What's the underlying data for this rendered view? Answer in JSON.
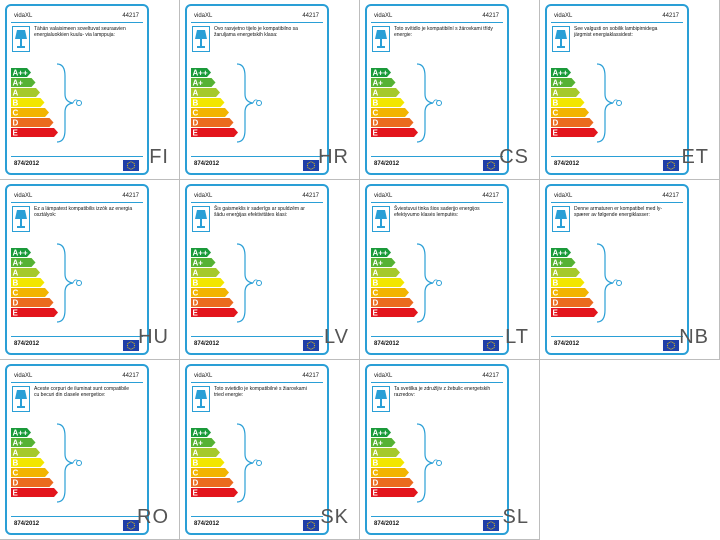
{
  "brand": "vidaXL",
  "model": "44217",
  "regulation": "874/2012",
  "energy_classes": [
    "A++",
    "A+",
    "A",
    "B",
    "C",
    "D",
    "E"
  ],
  "class_colors": [
    "#1a9a3a",
    "#56b234",
    "#a6c92b",
    "#f2e600",
    "#f2b400",
    "#ea6b1e",
    "#e3151d"
  ],
  "accent_color": "#2a9fd6",
  "labels": [
    {
      "code": "FI",
      "text": "Tähän valaisimeen soveltuvat seuraavien energialuokkien kuulu- via lamppuja:"
    },
    {
      "code": "HR",
      "text": "Ovo rasvjetno tijelo je kompatibilno sa žaruljama energetskih klasa:"
    },
    {
      "code": "CS",
      "text": "Toto svítidlo je kompatibilní s žárovkami třídy energie:"
    },
    {
      "code": "ET",
      "text": "See valgusti on sobilik lambipirnidega järgmist energiaklassidest:"
    },
    {
      "code": "HU",
      "text": "Ez a lámpatest kompatibilis izzók az energia osztályok:"
    },
    {
      "code": "LV",
      "text": "Šis gaismeklis ir saderīgs ar spuldzēm ar šādu enerģijas efektivitātes klasi:"
    },
    {
      "code": "LT",
      "text": "Šviestuvui tinka šios saderįjo energijos efektyvumo klasės lemputės:"
    },
    {
      "code": "NB",
      "text": "Denne armaturen er kompatibel med ly- spærer av følgende energiklasser:"
    },
    {
      "code": "RO",
      "text": "Aceste corpuri de iluminat sunt compatibile cu becuri din clasele energetice:"
    },
    {
      "code": "SK",
      "text": "Toto svietidlo je kompatibilné s žiarovkami tried energie:"
    },
    {
      "code": "SL",
      "text": "Ta svetilka je združljiv z žebulic energetskih razredov:"
    }
  ]
}
